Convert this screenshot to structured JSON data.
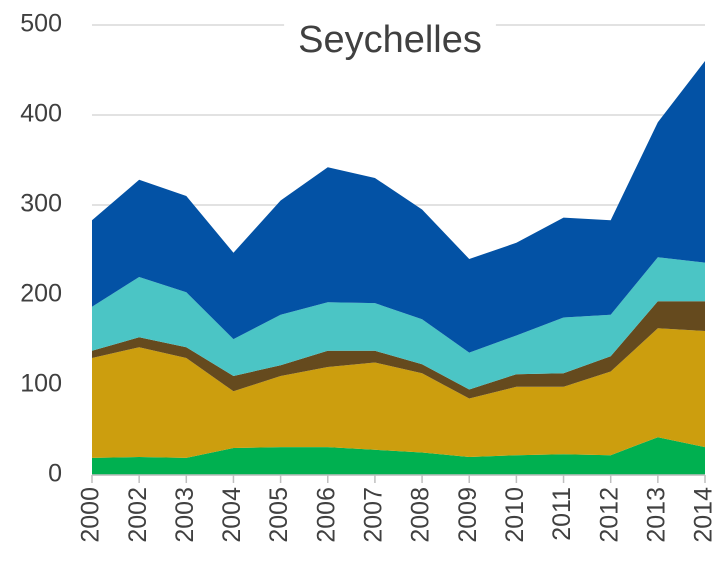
{
  "chart_data": {
    "type": "stacked_area",
    "title": "Seychelles",
    "categories": [
      "2000",
      "2002",
      "2003",
      "2004",
      "2005",
      "2006",
      "2007",
      "2008",
      "2009",
      "2010",
      "2011",
      "2012",
      "2013",
      "2014"
    ],
    "series": [
      {
        "color": "#00b050",
        "values": [
          19,
          20,
          19,
          30,
          31,
          31,
          28,
          25,
          20,
          22,
          23,
          22,
          42,
          31
        ]
      },
      {
        "color": "#cc9e0e",
        "values": [
          111,
          122,
          111,
          63,
          79,
          89,
          97,
          88,
          65,
          76,
          75,
          93,
          121,
          129
        ]
      },
      {
        "color": "#654a1e",
        "values": [
          8,
          11,
          12,
          17,
          12,
          18,
          13,
          10,
          10,
          14,
          15,
          17,
          30,
          33
        ]
      },
      {
        "color": "#4bc5c5",
        "values": [
          49,
          67,
          61,
          41,
          56,
          54,
          53,
          50,
          41,
          43,
          62,
          46,
          49,
          43
        ]
      },
      {
        "color": "#0352a5",
        "values": [
          96,
          108,
          107,
          96,
          127,
          150,
          139,
          122,
          104,
          103,
          111,
          105,
          150,
          224
        ]
      }
    ],
    "ylim": [
      0,
      500
    ],
    "yticks": [
      0,
      100,
      200,
      300,
      400,
      500
    ],
    "grid": true
  }
}
